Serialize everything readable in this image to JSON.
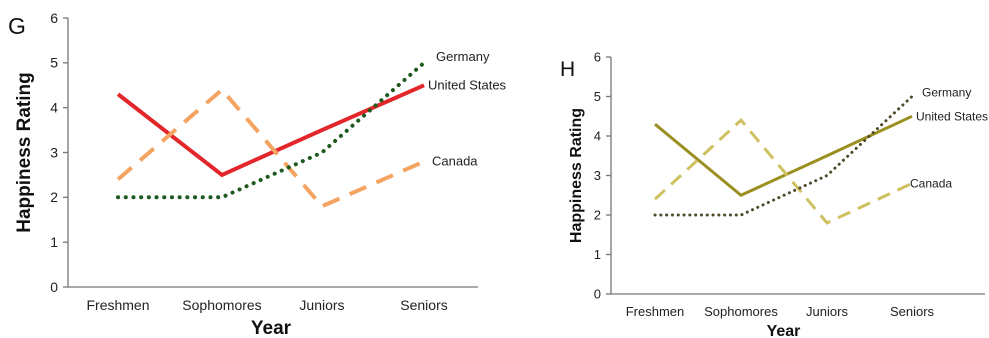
{
  "chart_data": [
    {
      "type": "line",
      "panel_label": "G",
      "categories": [
        "Freshmen",
        "Sophomores",
        "Juniors",
        "Seniors"
      ],
      "xlabel": "Year",
      "ylabel": "Happiness Rating",
      "ylim": [
        0,
        6
      ],
      "yticks": [
        "0",
        "1",
        "2",
        "3",
        "4",
        "5",
        "6"
      ],
      "grid": false,
      "legend": "labels at line ends (right)",
      "series": [
        {
          "name": "United States",
          "values": [
            4.3,
            2.5,
            3.5,
            4.5
          ],
          "color": "#e3262a",
          "style": "solid"
        },
        {
          "name": "Canada",
          "values": [
            2.4,
            4.4,
            1.8,
            2.8
          ],
          "color": "#f4a460",
          "style": "dashed"
        },
        {
          "name": "Germany",
          "values": [
            2.0,
            2.0,
            3.0,
            5.0
          ],
          "color": "#1e5a1e",
          "style": "dotted"
        }
      ]
    },
    {
      "type": "line",
      "panel_label": "H",
      "categories": [
        "Freshmen",
        "Sophomores",
        "Juniors",
        "Seniors"
      ],
      "xlabel": "Year",
      "ylabel": "Happiness Rating",
      "ylim": [
        0,
        6
      ],
      "yticks": [
        "0",
        "1",
        "2",
        "3",
        "4",
        "5",
        "6"
      ],
      "grid": false,
      "legend": "labels at line ends (right)",
      "series": [
        {
          "name": "United States",
          "values": [
            4.3,
            2.5,
            3.5,
            4.5
          ],
          "color": "#9a8f1f",
          "style": "solid"
        },
        {
          "name": "Canada",
          "values": [
            2.4,
            4.4,
            1.8,
            2.8
          ],
          "color": "#cfc160",
          "style": "dashed"
        },
        {
          "name": "Germany",
          "values": [
            2.0,
            2.0,
            3.0,
            5.0
          ],
          "color": "#4e4a2a",
          "style": "dotted"
        }
      ]
    }
  ]
}
